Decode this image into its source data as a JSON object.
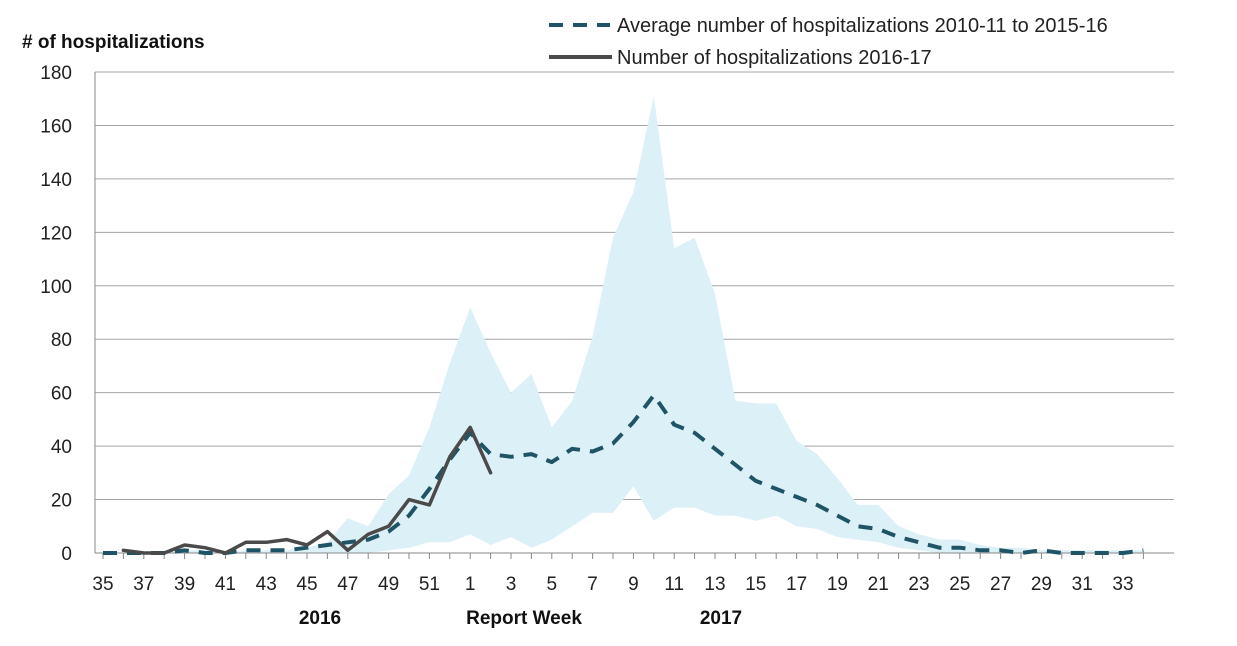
{
  "chart_data": {
    "type": "line",
    "ylabel": "# of hospitalizations",
    "xlabel": "Report Week",
    "year_labels": [
      "2016",
      "2017"
    ],
    "ylim": [
      0,
      180
    ],
    "yticks": [
      0,
      20,
      40,
      60,
      80,
      100,
      120,
      140,
      160,
      180
    ],
    "weeks": [
      35,
      36,
      37,
      38,
      39,
      40,
      41,
      42,
      43,
      44,
      45,
      46,
      47,
      48,
      49,
      50,
      51,
      52,
      1,
      2,
      3,
      4,
      5,
      6,
      7,
      8,
      9,
      10,
      11,
      12,
      13,
      14,
      15,
      16,
      17,
      18,
      19,
      20,
      21,
      22,
      23,
      24,
      25,
      26,
      27,
      28,
      29,
      30,
      31,
      32,
      33,
      34
    ],
    "xtick_labels": [
      "35",
      "37",
      "39",
      "41",
      "43",
      "45",
      "47",
      "49",
      "51",
      "1",
      "3",
      "5",
      "7",
      "9",
      "11",
      "13",
      "15",
      "17",
      "19",
      "21",
      "23",
      "25",
      "27",
      "29",
      "31",
      "33"
    ],
    "grid": "horizontal",
    "legend_position": "top-right",
    "series": [
      {
        "name": "Average number of hospitalizations 2010-11 to 2015-16",
        "style": "dashed",
        "color": "#1f5466",
        "values": [
          0,
          0,
          0,
          0,
          1,
          0,
          0,
          1,
          1,
          1,
          2,
          3,
          4,
          5,
          8,
          14,
          24,
          35,
          45,
          37,
          36,
          37,
          34,
          39,
          38,
          41,
          49,
          59,
          48,
          45,
          39,
          33,
          27,
          24,
          21,
          18,
          14,
          10,
          9,
          6,
          4,
          2,
          2,
          1,
          1,
          0,
          1,
          0,
          0,
          0,
          0,
          1
        ]
      },
      {
        "name": "Number of hospitalizations 2016-17",
        "style": "solid",
        "color": "#4a4a4a",
        "start_index": 1,
        "values": [
          1,
          0,
          0,
          3,
          2,
          0,
          4,
          4,
          5,
          3,
          8,
          1,
          7,
          10,
          20,
          18,
          36,
          47,
          30
        ]
      }
    ],
    "range_band": {
      "color": "#dcf0f7",
      "max": [
        0,
        0,
        0,
        0,
        1,
        1,
        0,
        1,
        1,
        1,
        2,
        4,
        13,
        10,
        22,
        29,
        47,
        71,
        92,
        75,
        60,
        67,
        47,
        57,
        81,
        118,
        135,
        171,
        114,
        118,
        97,
        57,
        56,
        56,
        42,
        37,
        28,
        18,
        18,
        10,
        7,
        5,
        5,
        3,
        2,
        2,
        1,
        1,
        1,
        1,
        1,
        1
      ],
      "min": [
        0,
        0,
        0,
        0,
        0,
        0,
        0,
        0,
        0,
        0,
        0,
        0,
        0,
        0,
        1,
        2,
        4,
        4,
        7,
        3,
        6,
        2,
        5,
        10,
        15,
        15,
        25,
        12,
        17,
        17,
        14,
        14,
        12,
        14,
        10,
        9,
        6,
        5,
        4,
        2,
        1,
        0,
        0,
        0,
        0,
        0,
        0,
        0,
        0,
        0,
        0,
        0
      ]
    }
  }
}
